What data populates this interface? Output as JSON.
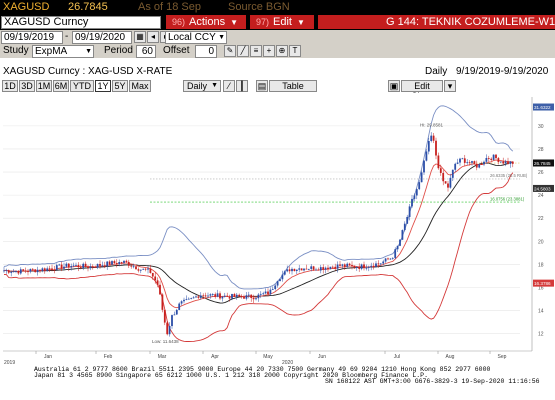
{
  "header": {
    "ticker": "XAGUSD",
    "price": "26.7845",
    "as_of": "As of 18 Sep",
    "source": "Source BGN"
  },
  "menu": {
    "security_field": "XAGUSD Curncy",
    "actions_num": "96)",
    "actions_label": "Actions",
    "edit_num": "97)",
    "edit_label": "Edit",
    "title": "G 144: TEKNIK COZUMLEME-W1"
  },
  "dates": {
    "start": "09/19/2019",
    "end": "09/19/2020",
    "ccy": "Local CCY"
  },
  "study": {
    "label": "Study",
    "value": "ExpMA",
    "period_label": "Period",
    "period": "60",
    "offset_label": "Offset",
    "offset": "0"
  },
  "info": {
    "description": "XAGUSD Curncy : XAG-USD X-RATE",
    "freq": "Daily",
    "range": "9/19/2019-9/19/2020"
  },
  "toolbar": {
    "ranges": [
      "1D",
      "3D",
      "1M",
      "6M",
      "YTD",
      "1Y",
      "5Y",
      "Max"
    ],
    "daily": "Daily",
    "table": "Table",
    "edit_chart": "Edit Chart"
  },
  "chart": {
    "hi_label": "Hi: 29.8581",
    "low_label": "Low: 11.6438",
    "ref_label_1": "26.6335 (25.5 RUB)",
    "ref_label_2": "16.0756 (23.3881)",
    "x_ticks": [
      "Jan",
      "Feb",
      "Mar",
      "Apr",
      "May",
      "Jun",
      "Jul",
      "Aug",
      "Sep"
    ],
    "x_years": [
      "2019",
      "2020"
    ],
    "y_ticks": [
      "30",
      "28",
      "26",
      "24",
      "22",
      "20",
      "18",
      "16",
      "14",
      "12"
    ],
    "tags": [
      {
        "text": "31.6322",
        "color": "#3d5fa8"
      },
      {
        "text": "26.7845",
        "color": "#111111"
      },
      {
        "text": "24.5803",
        "color": "#333333"
      },
      {
        "text": "16.3786",
        "color": "#d43a3a"
      }
    ],
    "colors": {
      "up": "#2b4ea8",
      "down": "#c8201e",
      "upper_band": "#7a8fc4",
      "lower_band": "#d43a3a",
      "middle": "#222222",
      "ema": "#e0504a"
    }
  },
  "footer": {
    "line1": "Australia 61 2 9777 8600 Brazil 5511 2395 9000 Europe 44 20 7330 7500 Germany 49 69 9204 1210 Hong Kong 852 2977 6000",
    "line2": "Japan 81 3 4565 8900        Singapore 65 6212 1000          U.S. 1 212 318 2000      Copyright 2020 Bloomberg Finance L.P.",
    "line3": "SN 168122 AST  GMT+3:00 G676-3829-3 19-Sep-2020 11:16:56"
  }
}
